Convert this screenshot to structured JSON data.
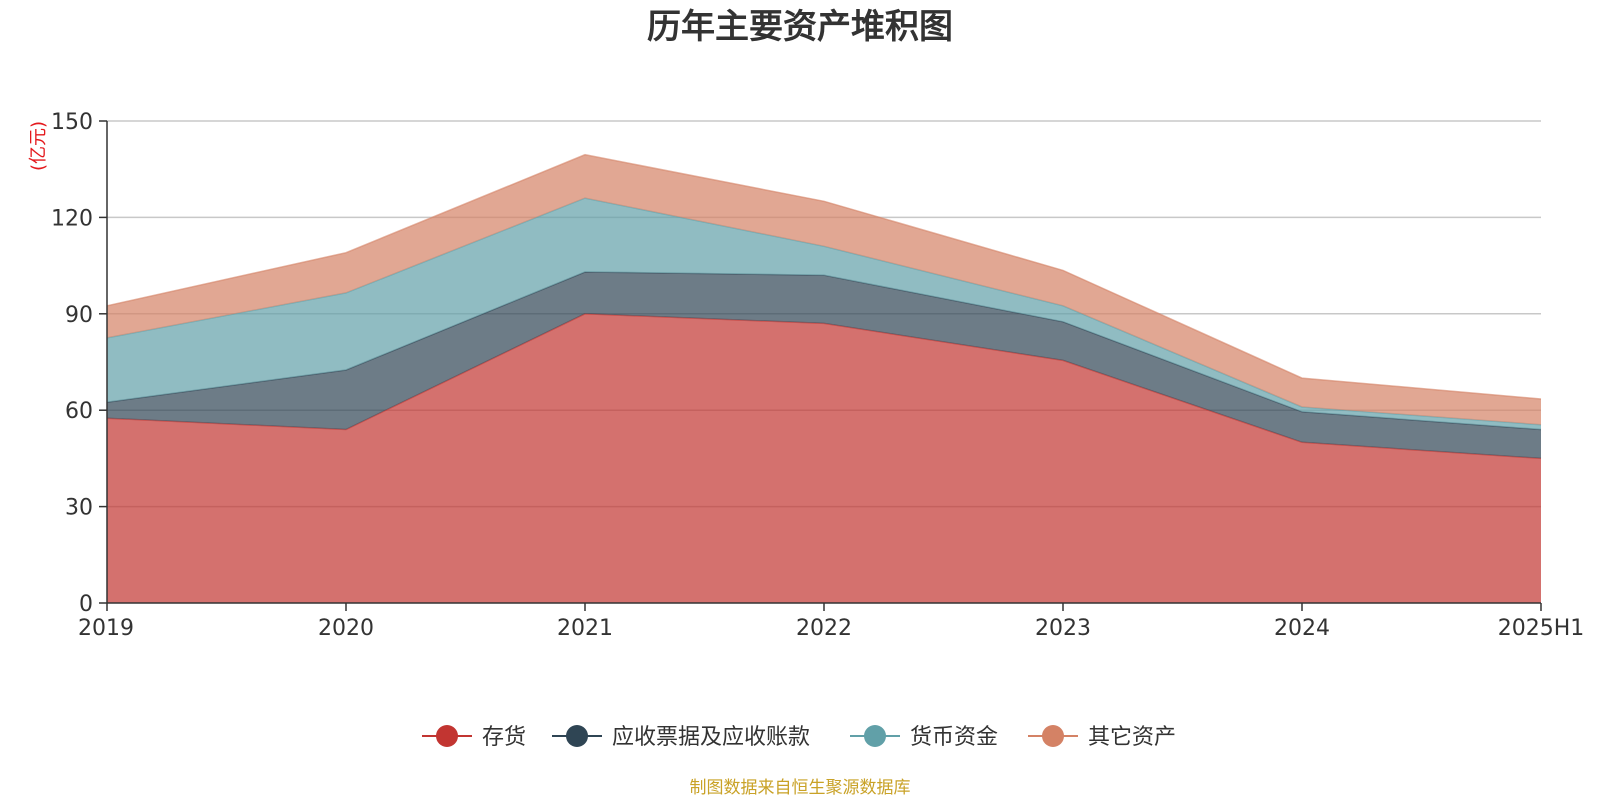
{
  "chart_data": {
    "type": "area",
    "stacked": true,
    "title": "历年主要资产堆积图",
    "unit_label": "(亿元)",
    "categories": [
      "2019",
      "2020",
      "2021",
      "2022",
      "2023",
      "2024",
      "2025H1"
    ],
    "ylim": [
      0,
      150
    ],
    "yticks": [
      0,
      30,
      60,
      90,
      120,
      150
    ],
    "grid": true,
    "legend_position": "bottom",
    "series": [
      {
        "name": "存货",
        "color": "#c23531",
        "values": [
          57.5,
          54,
          90,
          87,
          75.5,
          50,
          45
        ]
      },
      {
        "name": "应收票据及应收账款",
        "color": "#2f4554",
        "values": [
          5,
          18.5,
          13,
          15,
          12,
          9.5,
          9
        ]
      },
      {
        "name": "货币资金",
        "color": "#61a0a8",
        "values": [
          20,
          24,
          23,
          9,
          5,
          1.5,
          1.5
        ]
      },
      {
        "name": "其它资产",
        "color": "#d48265",
        "values": [
          10,
          12.5,
          13.5,
          14,
          11,
          9,
          8
        ]
      }
    ],
    "source": "制图数据来自恒生聚源数据库",
    "source_color": "#c9a227"
  }
}
